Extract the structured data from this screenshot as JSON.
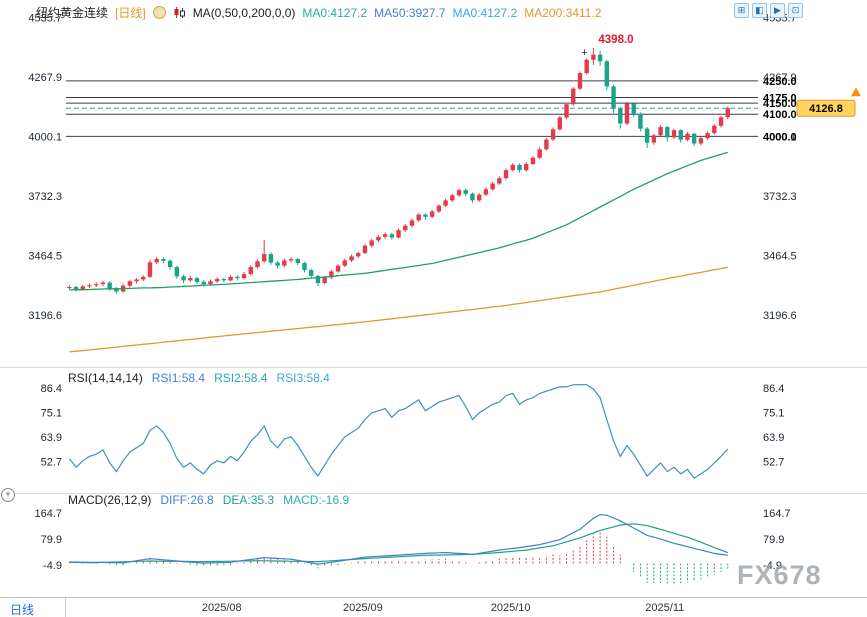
{
  "header": {
    "instrument": "纽约黄金连续",
    "period": "[日线]",
    "period_color": "#e8972e",
    "ma_overlay": {
      "label": "MA(0,50,0,200,0,0)",
      "values": [
        {
          "text": "MA0:4127.2",
          "color": "#2ba8a8"
        },
        {
          "text": "MA50:3927.7",
          "color": "#3f7fd6"
        },
        {
          "text": "MA0:4127.2",
          "color": "#3fa7d6"
        },
        {
          "text": "MA200:3411.2",
          "color": "#e8962e"
        }
      ]
    },
    "toolbar": [
      {
        "glyph": "⊞"
      },
      {
        "glyph": "◧"
      },
      {
        "glyph": "▶"
      },
      {
        "glyph": "⊡"
      }
    ]
  },
  "rsi_header": {
    "label": "RSI(14,14,14)",
    "values": [
      {
        "text": "RSI1:58.4",
        "color": "#3f7fd6"
      },
      {
        "text": "RSI2:58.4",
        "color": "#2ba8a8"
      },
      {
        "text": "RSI3:58.4",
        "color": "#3fa7d6"
      }
    ]
  },
  "macd_header": {
    "label": "MACD(26,12,9)",
    "values": [
      {
        "text": "DIFF:26.8",
        "color": "#3f7fd6"
      },
      {
        "text": "DEA:35.3",
        "color": "#21a087"
      },
      {
        "text": "MACD:-16.9",
        "color": "#2bb0a8"
      }
    ]
  },
  "footer": {
    "period_button": "日线"
  },
  "watermark": "FX678",
  "chart_data": [
    {
      "type": "candlestick",
      "title": "纽约黄金连续 日线",
      "y_ticks": [
        4535.7,
        4267.9,
        4000.1,
        3732.3,
        3464.5,
        3196.6
      ],
      "ylim": [
        2980,
        4560
      ],
      "levels": [
        4250.0,
        4175.0,
        4150.0,
        4100.0,
        4000.0
      ],
      "last_price": 4126.8,
      "peak": {
        "index": 78,
        "price": 4398.0,
        "label": "4398.0"
      },
      "x_month_ticks": [
        {
          "index": 23,
          "label": "2025/08"
        },
        {
          "index": 44,
          "label": "2025/09"
        },
        {
          "index": 66,
          "label": "2025/10"
        },
        {
          "index": 89,
          "label": "2025/11"
        }
      ],
      "colors": {
        "up": "#e23b4e",
        "down": "#17a487",
        "ma50": "#21a061",
        "ma200": "#e8962e",
        "level_line": "#3a3f46",
        "last_price_line": "#4a8fd4",
        "tag_bg": "#ffd45f",
        "tag_border": "#e8972e"
      },
      "ohlc": [
        [
          3318,
          3330,
          3310,
          3322
        ],
        [
          3322,
          3328,
          3302,
          3312
        ],
        [
          3312,
          3332,
          3306,
          3325
        ],
        [
          3325,
          3338,
          3318,
          3330
        ],
        [
          3330,
          3344,
          3322,
          3335
        ],
        [
          3335,
          3350,
          3326,
          3342
        ],
        [
          3342,
          3348,
          3305,
          3315
        ],
        [
          3315,
          3322,
          3292,
          3302
        ],
        [
          3302,
          3335,
          3296,
          3328
        ],
        [
          3328,
          3355,
          3320,
          3348
        ],
        [
          3348,
          3362,
          3338,
          3356
        ],
        [
          3356,
          3375,
          3348,
          3368
        ],
        [
          3368,
          3445,
          3362,
          3433
        ],
        [
          3433,
          3458,
          3425,
          3448
        ],
        [
          3448,
          3456,
          3428,
          3440
        ],
        [
          3440,
          3446,
          3400,
          3412
        ],
        [
          3412,
          3418,
          3360,
          3370
        ],
        [
          3370,
          3378,
          3340,
          3352
        ],
        [
          3352,
          3370,
          3345,
          3362
        ],
        [
          3362,
          3368,
          3336,
          3345
        ],
        [
          3345,
          3352,
          3325,
          3335
        ],
        [
          3335,
          3356,
          3328,
          3348
        ],
        [
          3348,
          3366,
          3340,
          3358
        ],
        [
          3358,
          3364,
          3342,
          3352
        ],
        [
          3352,
          3375,
          3346,
          3368
        ],
        [
          3368,
          3376,
          3352,
          3362
        ],
        [
          3362,
          3390,
          3356,
          3380
        ],
        [
          3380,
          3420,
          3374,
          3412
        ],
        [
          3412,
          3446,
          3405,
          3438
        ],
        [
          3438,
          3534,
          3430,
          3470
        ],
        [
          3470,
          3478,
          3422,
          3432
        ],
        [
          3432,
          3440,
          3405,
          3418
        ],
        [
          3418,
          3450,
          3412,
          3442
        ],
        [
          3442,
          3456,
          3432,
          3448
        ],
        [
          3448,
          3452,
          3420,
          3430
        ],
        [
          3430,
          3436,
          3388,
          3398
        ],
        [
          3398,
          3405,
          3362,
          3372
        ],
        [
          3372,
          3378,
          3326,
          3340
        ],
        [
          3340,
          3372,
          3334,
          3365
        ],
        [
          3365,
          3400,
          3358,
          3392
        ],
        [
          3392,
          3425,
          3386,
          3418
        ],
        [
          3418,
          3450,
          3412,
          3442
        ],
        [
          3442,
          3468,
          3435,
          3460
        ],
        [
          3460,
          3482,
          3452,
          3475
        ],
        [
          3475,
          3515,
          3470,
          3508
        ],
        [
          3508,
          3540,
          3500,
          3532
        ],
        [
          3532,
          3556,
          3524,
          3548
        ],
        [
          3548,
          3568,
          3538,
          3560
        ],
        [
          3560,
          3566,
          3535,
          3545
        ],
        [
          3545,
          3585,
          3540,
          3578
        ],
        [
          3578,
          3606,
          3570,
          3598
        ],
        [
          3598,
          3630,
          3590,
          3622
        ],
        [
          3622,
          3655,
          3615,
          3648
        ],
        [
          3648,
          3654,
          3625,
          3638
        ],
        [
          3638,
          3670,
          3632,
          3662
        ],
        [
          3662,
          3695,
          3655,
          3688
        ],
        [
          3688,
          3720,
          3682,
          3712
        ],
        [
          3712,
          3742,
          3705,
          3735
        ],
        [
          3735,
          3765,
          3728,
          3758
        ],
        [
          3758,
          3764,
          3732,
          3742
        ],
        [
          3742,
          3748,
          3702,
          3712
        ],
        [
          3712,
          3745,
          3706,
          3738
        ],
        [
          3738,
          3770,
          3732,
          3762
        ],
        [
          3762,
          3795,
          3755,
          3788
        ],
        [
          3788,
          3820,
          3782,
          3812
        ],
        [
          3812,
          3856,
          3806,
          3848
        ],
        [
          3848,
          3880,
          3842,
          3872
        ],
        [
          3872,
          3878,
          3838,
          3848
        ],
        [
          3848,
          3884,
          3842,
          3876
        ],
        [
          3876,
          3912,
          3870,
          3904
        ],
        [
          3904,
          3950,
          3898,
          3942
        ],
        [
          3942,
          3994,
          3936,
          3986
        ],
        [
          3986,
          4040,
          3980,
          4032
        ],
        [
          4032,
          4092,
          4026,
          4085
        ],
        [
          4085,
          4152,
          4078,
          4145
        ],
        [
          4145,
          4222,
          4138,
          4215
        ],
        [
          4215,
          4292,
          4208,
          4285
        ],
        [
          4285,
          4352,
          4278,
          4345
        ],
        [
          4345,
          4398,
          4322,
          4368
        ],
        [
          4368,
          4386,
          4318,
          4338
        ],
        [
          4338,
          4345,
          4208,
          4225
        ],
        [
          4225,
          4232,
          4105,
          4125
        ],
        [
          4125,
          4132,
          4035,
          4058
        ],
        [
          4058,
          4155,
          4050,
          4148
        ],
        [
          4148,
          4152,
          4088,
          4102
        ],
        [
          4102,
          4108,
          4022,
          4035
        ],
        [
          4035,
          4042,
          3948,
          3972
        ],
        [
          3972,
          4012,
          3962,
          4005
        ],
        [
          4005,
          4050,
          3998,
          4042
        ],
        [
          4042,
          4046,
          3978,
          3996
        ],
        [
          3996,
          4035,
          3988,
          4028
        ],
        [
          4028,
          4032,
          3972,
          3985
        ],
        [
          3985,
          4020,
          3978,
          4012
        ],
        [
          4012,
          4016,
          3958,
          3968
        ],
        [
          3968,
          3998,
          3960,
          3992
        ],
        [
          3992,
          4022,
          3985,
          4015
        ],
        [
          4015,
          4055,
          4008,
          4048
        ],
        [
          4048,
          4092,
          4040,
          4086
        ],
        [
          4086,
          4135,
          4078,
          4126.8
        ]
      ],
      "ma50": [
        3309,
        3310,
        3310,
        3311,
        3312,
        3313,
        3314,
        3314,
        3315,
        3316,
        3317,
        3318,
        3318,
        3319,
        3320,
        3322,
        3323,
        3325,
        3326,
        3328,
        3330,
        3331,
        3333,
        3334,
        3336,
        3338,
        3340,
        3342,
        3344,
        3346,
        3348,
        3350,
        3352,
        3354,
        3356,
        3359,
        3362,
        3364,
        3367,
        3370,
        3373,
        3376,
        3378,
        3381,
        3384,
        3388,
        3393,
        3397,
        3402,
        3406,
        3410,
        3415,
        3419,
        3424,
        3428,
        3435,
        3442,
        3449,
        3456,
        3463,
        3470,
        3477,
        3484,
        3491,
        3498,
        3507,
        3516,
        3524,
        3533,
        3542,
        3554,
        3566,
        3578,
        3590,
        3602,
        3618,
        3634,
        3650,
        3666,
        3682,
        3698,
        3714,
        3730,
        3746,
        3762,
        3776,
        3790,
        3804,
        3818,
        3832,
        3844,
        3856,
        3868,
        3880,
        3892,
        3901,
        3910,
        3919,
        3928
      ],
      "ma200": [
        3030,
        3033,
        3036,
        3039,
        3042,
        3045,
        3048,
        3051,
        3055,
        3058,
        3061,
        3064,
        3067,
        3070,
        3074,
        3077,
        3080,
        3083,
        3086,
        3089,
        3092,
        3096,
        3099,
        3102,
        3105,
        3108,
        3111,
        3114,
        3117,
        3120,
        3123,
        3126,
        3129,
        3132,
        3135,
        3138,
        3141,
        3144,
        3147,
        3150,
        3153,
        3156,
        3159,
        3162,
        3165,
        3169,
        3172,
        3176,
        3179,
        3183,
        3186,
        3190,
        3193,
        3197,
        3200,
        3204,
        3207,
        3211,
        3214,
        3218,
        3221,
        3225,
        3228,
        3232,
        3235,
        3239,
        3244,
        3248,
        3252,
        3257,
        3261,
        3265,
        3270,
        3274,
        3278,
        3283,
        3287,
        3291,
        3296,
        3300,
        3306,
        3312,
        3318,
        3324,
        3330,
        3336,
        3342,
        3348,
        3354,
        3360,
        3366,
        3371,
        3377,
        3383,
        3388,
        3394,
        3400,
        3405,
        3411
      ]
    },
    {
      "type": "line",
      "name": "RSI",
      "y_ticks": [
        86.4,
        75.1,
        63.9,
        52.7
      ],
      "ylim": [
        40,
        92
      ],
      "colors": {
        "line": "#3e8fca"
      },
      "values": [
        54,
        50,
        53,
        55,
        56,
        58,
        52,
        48,
        53,
        57,
        59,
        61,
        67,
        69,
        66,
        61,
        54,
        50,
        52,
        49,
        47,
        51,
        53,
        52,
        55,
        53,
        57,
        62,
        65,
        69,
        62,
        59,
        63,
        64,
        60,
        55,
        50,
        46,
        51,
        56,
        60,
        64,
        66,
        68,
        72,
        75,
        76,
        77,
        73,
        76,
        77,
        79,
        81,
        76,
        78,
        80,
        81,
        82,
        83,
        78,
        72,
        75,
        77,
        79,
        80,
        83,
        84,
        79,
        81,
        82,
        84,
        85,
        86,
        87,
        87,
        88,
        88,
        88,
        86,
        82,
        72,
        62,
        55,
        60,
        56,
        51,
        46,
        49,
        52,
        48,
        50,
        47,
        49,
        45,
        47,
        49,
        52,
        55,
        58.4
      ]
    },
    {
      "type": "macd",
      "name": "MACD",
      "y_ticks": [
        164.7,
        79.9,
        -4.9
      ],
      "ylim": [
        -100,
        208
      ],
      "colors": {
        "diff": "#3e7fd0",
        "dea": "#21a087",
        "hist_pos": "#e23b4e",
        "hist_neg": "#17a487"
      },
      "diff": [
        5,
        4.6,
        4.3,
        4,
        4,
        3.5,
        3,
        2.5,
        2,
        5.5,
        9,
        12.5,
        16,
        14,
        12,
        10,
        8,
        6.3,
        4.5,
        2.8,
        1,
        1.8,
        2.5,
        3.3,
        4,
        7,
        10,
        13,
        16,
        19,
        17.8,
        16.5,
        15.3,
        14,
        10,
        6,
        2,
        -2,
        1,
        4,
        7,
        10.5,
        14,
        17.5,
        21,
        22.3,
        23.5,
        24.8,
        26,
        27.5,
        29,
        30.5,
        32,
        33,
        34,
        35,
        36,
        34.5,
        33,
        31.5,
        30,
        33.5,
        37,
        40.5,
        44,
        46.7,
        49.3,
        52,
        55.3,
        58.7,
        62,
        67.3,
        72.7,
        78,
        89.3,
        100.7,
        112,
        130,
        148,
        160,
        158,
        149,
        140,
        128,
        116,
        104,
        92,
        86,
        80,
        73,
        66,
        60.5,
        55,
        49.5,
        44,
        38.5,
        33,
        29.9,
        26.8
      ],
      "dea": [
        3.6,
        3.4,
        3.2,
        3,
        3,
        3.6,
        4.3,
        4.9,
        5.5,
        6.1,
        6.8,
        7.4,
        8,
        7.8,
        7.5,
        7.3,
        7,
        6.8,
        6.5,
        6.3,
        6,
        6.4,
        6.8,
        7.1,
        7.5,
        7.9,
        8.3,
        8.6,
        9,
        8.7,
        8.3,
        8,
        7.7,
        7.3,
        7,
        6.7,
        6.3,
        6,
        7.4,
        8.9,
        10.3,
        11.7,
        13.1,
        14.6,
        16,
        17.3,
        18.5,
        19.8,
        21,
        22.3,
        23.5,
        24.8,
        26,
        26.5,
        27,
        27.5,
        28,
        28.5,
        29,
        29.5,
        30,
        31.5,
        33,
        34.5,
        36,
        38,
        40,
        42,
        44,
        47.5,
        51,
        54.5,
        58,
        64.5,
        71,
        77.5,
        84,
        92,
        100,
        108,
        114,
        120,
        126,
        128,
        130,
        127,
        124,
        118,
        112,
        105.5,
        99,
        92.5,
        86,
        78,
        70,
        61,
        52,
        43.7,
        35.3
      ]
    }
  ]
}
